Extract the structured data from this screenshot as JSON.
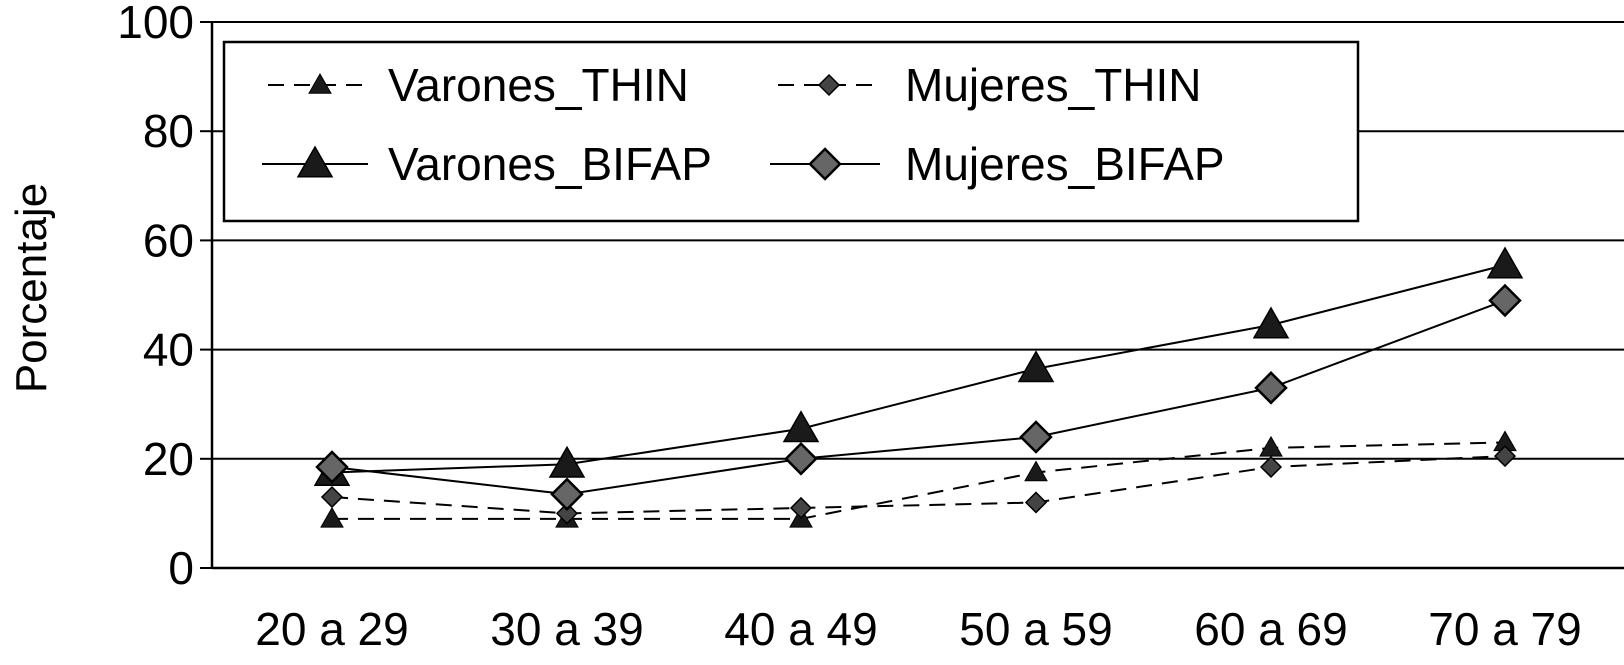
{
  "chart_data": {
    "type": "line",
    "title": "",
    "xlabel": "",
    "ylabel": "Porcentaje",
    "categories": [
      "20 a 29",
      "30 a 39",
      "40 a 49",
      "50 a 59",
      "60 a 69",
      "70 a 79"
    ],
    "ylim": [
      0,
      100
    ],
    "yticks": [
      "0",
      "20",
      "40",
      "60",
      "80",
      "100"
    ],
    "grid": true,
    "legend_position": "top-left inside",
    "series": [
      {
        "name": "Varones_THIN",
        "values": [
          9,
          9,
          9,
          17.5,
          22,
          23
        ],
        "line_style": "dashed",
        "marker": "triangle-small",
        "color": "#000000"
      },
      {
        "name": "Mujeres_THIN",
        "values": [
          13,
          10,
          11,
          12,
          18.5,
          20.5
        ],
        "line_style": "dashed",
        "marker": "diamond-small",
        "color": "#000000"
      },
      {
        "name": "Varones_BIFAP",
        "values": [
          17.5,
          19,
          25.5,
          36.5,
          44.5,
          55.5
        ],
        "line_style": "solid",
        "marker": "triangle-large",
        "color": "#000000"
      },
      {
        "name": "Mujeres_BIFAP",
        "values": [
          18.5,
          13.5,
          20,
          24,
          33,
          49
        ],
        "line_style": "solid",
        "marker": "diamond-large",
        "color": "#000000"
      }
    ]
  }
}
